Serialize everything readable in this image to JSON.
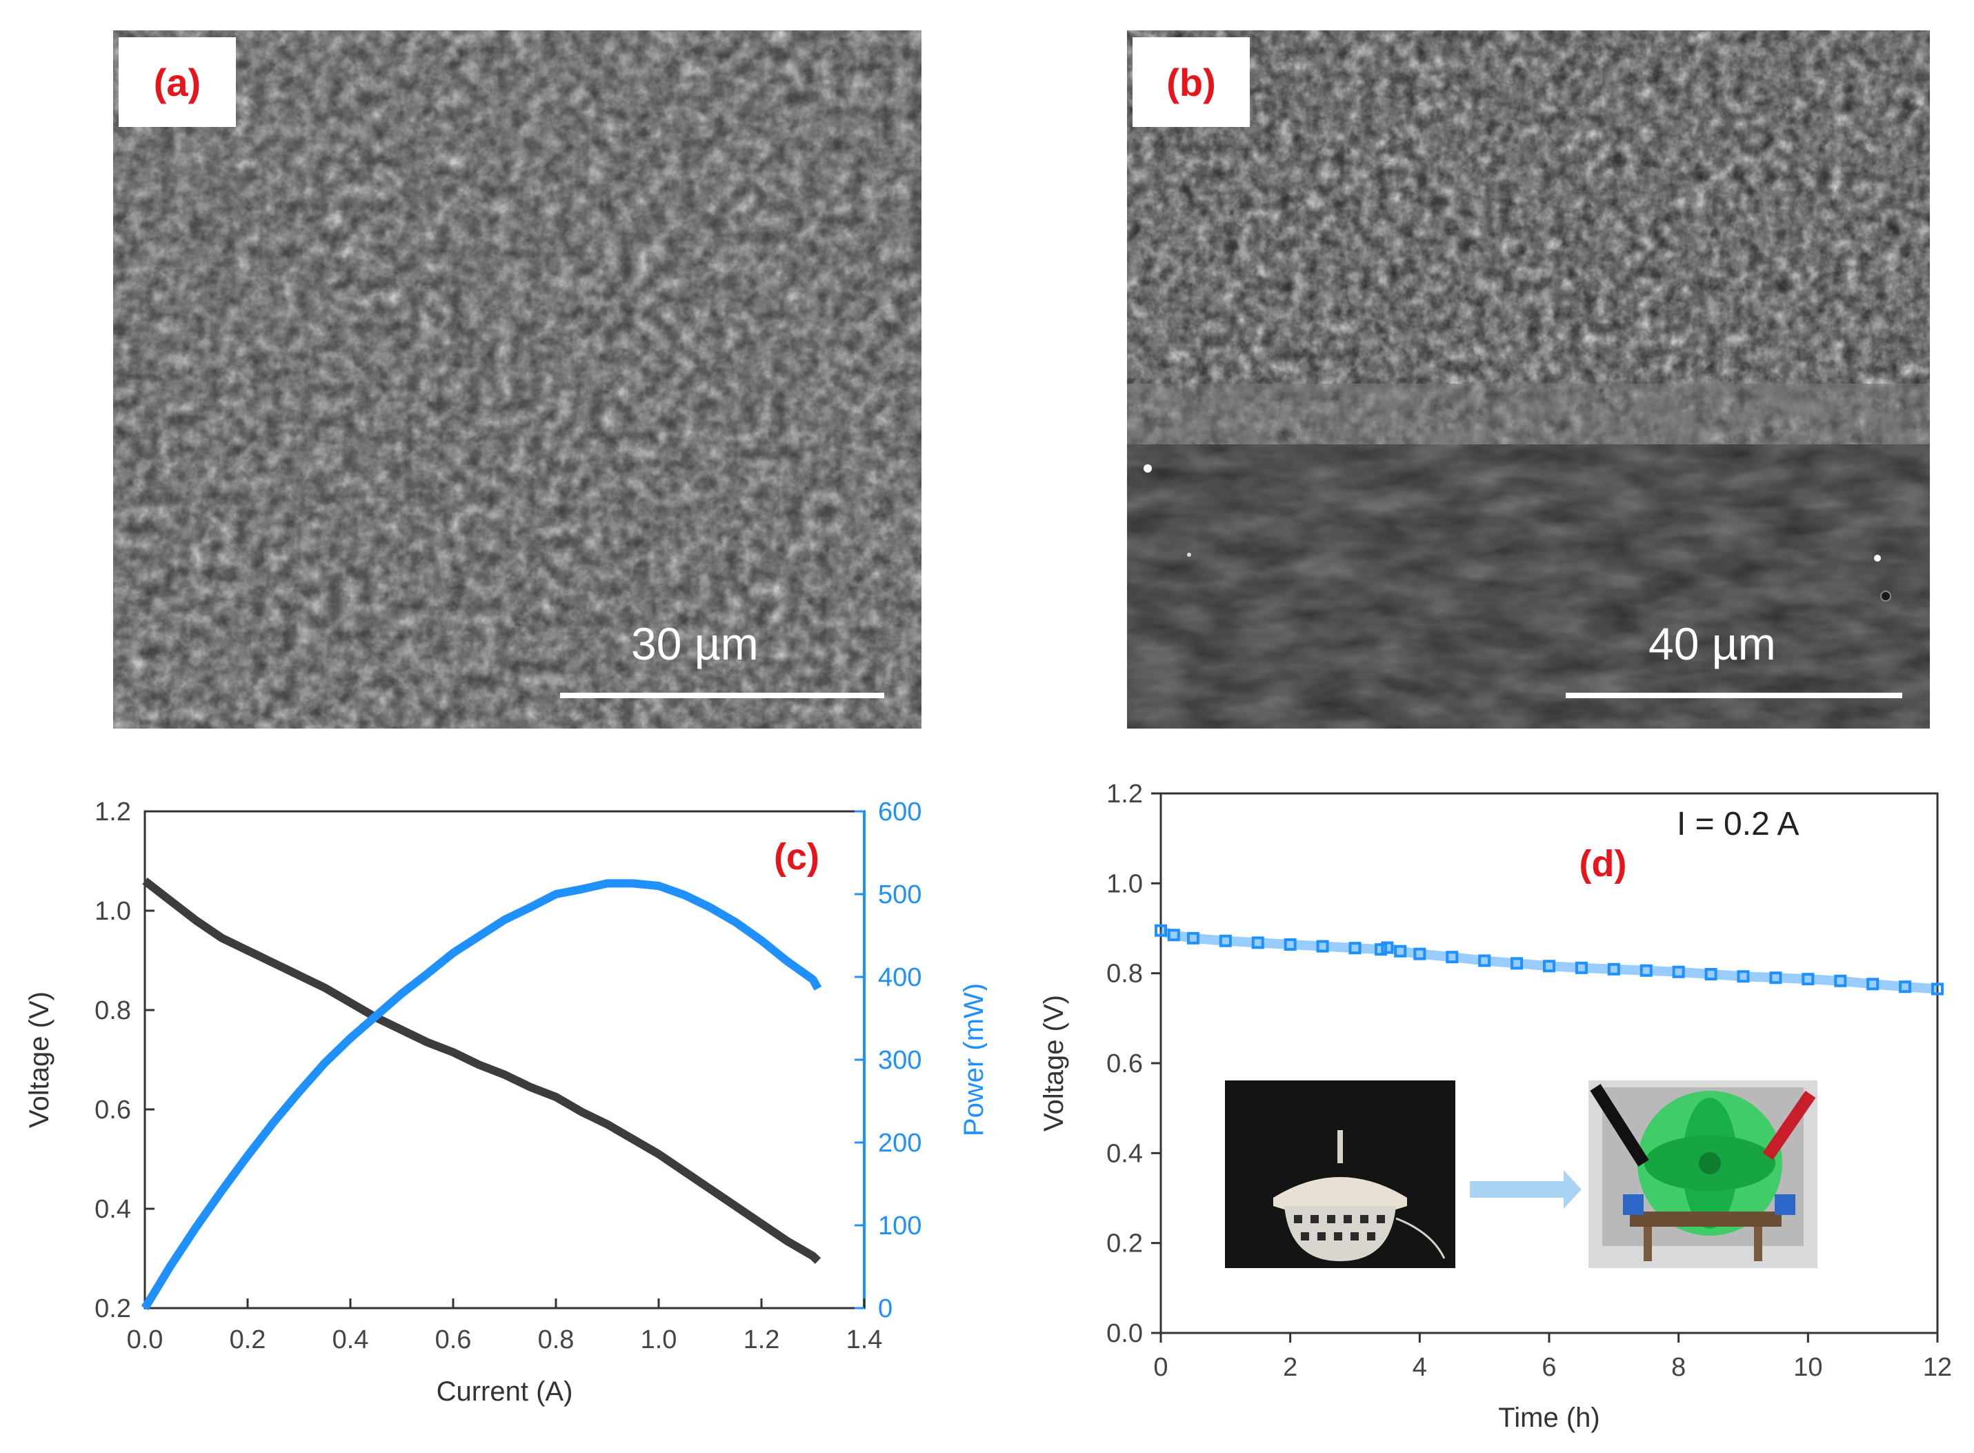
{
  "panels": {
    "a": {
      "label": "(a)",
      "scale_text": "30 µm"
    },
    "b": {
      "label": "(b)",
      "scale_text": "40 µm"
    }
  },
  "colors": {
    "voltage": "#3c3c3c",
    "power": "#1e90ff",
    "label_red": "#e8141b"
  },
  "inset_images": [
    "photo-cell-stack",
    "photo-fan"
  ],
  "chart_data": [
    {
      "type": "line",
      "panel_label": "(c)",
      "xlabel": "Current (A)",
      "ylabel": "Voltage (V)",
      "y2label": "Power  (mW)",
      "xlim": [
        0.0,
        1.4
      ],
      "ylim": [
        0.2,
        1.2
      ],
      "y2lim": [
        0,
        600
      ],
      "xticks": [
        "0.0",
        "0.2",
        "0.4",
        "0.6",
        "0.8",
        "1.0",
        "1.2",
        "1.4"
      ],
      "yticks": [
        "0.2",
        "0.4",
        "0.6",
        "0.8",
        "1.0",
        "1.2"
      ],
      "y2ticks": [
        "0",
        "100",
        "200",
        "300",
        "400",
        "500",
        "600"
      ],
      "series": [
        {
          "axis": "left",
          "color": "#3c3c3c",
          "x": [
            0.0,
            0.05,
            0.1,
            0.15,
            0.2,
            0.25,
            0.3,
            0.35,
            0.4,
            0.45,
            0.5,
            0.55,
            0.6,
            0.65,
            0.7,
            0.75,
            0.8,
            0.85,
            0.9,
            0.95,
            1.0,
            1.05,
            1.1,
            1.15,
            1.2,
            1.25,
            1.3,
            1.31
          ],
          "values": [
            1.06,
            1.02,
            0.98,
            0.945,
            0.92,
            0.895,
            0.87,
            0.845,
            0.815,
            0.785,
            0.76,
            0.735,
            0.715,
            0.69,
            0.67,
            0.645,
            0.625,
            0.595,
            0.57,
            0.54,
            0.51,
            0.475,
            0.44,
            0.405,
            0.37,
            0.335,
            0.305,
            0.295
          ]
        },
        {
          "axis": "right",
          "color": "#1e90ff",
          "x": [
            0.0,
            0.05,
            0.1,
            0.15,
            0.2,
            0.25,
            0.3,
            0.35,
            0.4,
            0.45,
            0.5,
            0.55,
            0.6,
            0.65,
            0.7,
            0.75,
            0.8,
            0.85,
            0.9,
            0.95,
            1.0,
            1.05,
            1.1,
            1.15,
            1.2,
            1.25,
            1.3,
            1.31
          ],
          "values": [
            0,
            51,
            98,
            142,
            184,
            224,
            261,
            296,
            326,
            353,
            380,
            404,
            429,
            449,
            469,
            484,
            500,
            506,
            513,
            513,
            510,
            499,
            484,
            466,
            444,
            419,
            397,
            386
          ]
        }
      ]
    },
    {
      "type": "scatter",
      "panel_label": "(d)",
      "annotation": "I = 0.2 A",
      "xlabel": "Time (h)",
      "ylabel": "Voltage (V)",
      "xlim": [
        0,
        12
      ],
      "ylim": [
        0.0,
        1.2
      ],
      "xticks": [
        "0",
        "2",
        "4",
        "6",
        "8",
        "10",
        "12"
      ],
      "yticks": [
        "0.0",
        "0.2",
        "0.4",
        "0.6",
        "0.8",
        "1.0",
        "1.2"
      ],
      "series": [
        {
          "color": "#1e90ff",
          "x": [
            0,
            0.2,
            0.5,
            1,
            1.5,
            2,
            2.5,
            3,
            3.4,
            3.5,
            3.7,
            4,
            4.5,
            5,
            5.5,
            6,
            6.5,
            7,
            7.5,
            8,
            8.5,
            9,
            9.5,
            10,
            10.5,
            11,
            11.5,
            12
          ],
          "values": [
            0.895,
            0.885,
            0.878,
            0.872,
            0.868,
            0.864,
            0.86,
            0.856,
            0.853,
            0.857,
            0.849,
            0.843,
            0.836,
            0.828,
            0.822,
            0.816,
            0.812,
            0.809,
            0.806,
            0.803,
            0.798,
            0.793,
            0.79,
            0.787,
            0.783,
            0.776,
            0.77,
            0.765
          ]
        }
      ]
    }
  ]
}
